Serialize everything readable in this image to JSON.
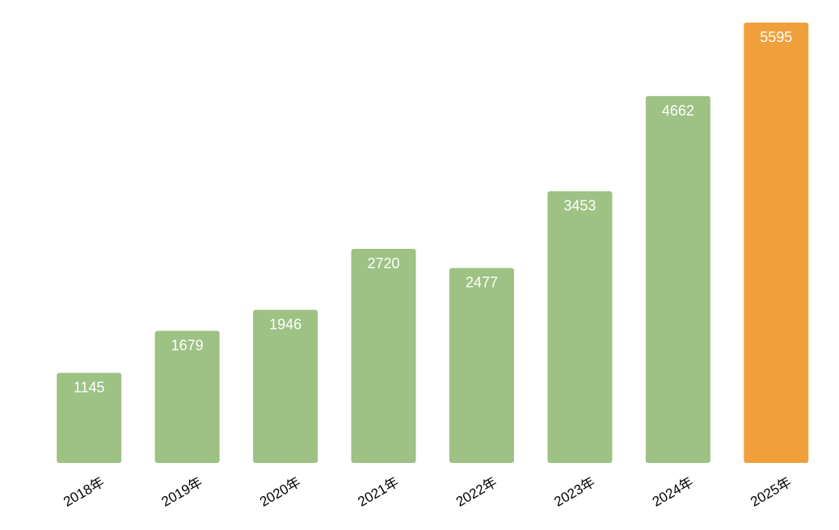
{
  "chart_data": {
    "type": "bar",
    "categories": [
      "2018年",
      "2019年",
      "2020年",
      "2021年",
      "2022年",
      "2023年",
      "2024年",
      "2025年"
    ],
    "values": [
      1145,
      1679,
      1946,
      2720,
      2477,
      3453,
      4662,
      5595
    ],
    "colors": [
      "#9dc284",
      "#9dc284",
      "#9dc284",
      "#9dc284",
      "#9dc284",
      "#9dc284",
      "#9dc284",
      "#f0a03a"
    ]
  }
}
